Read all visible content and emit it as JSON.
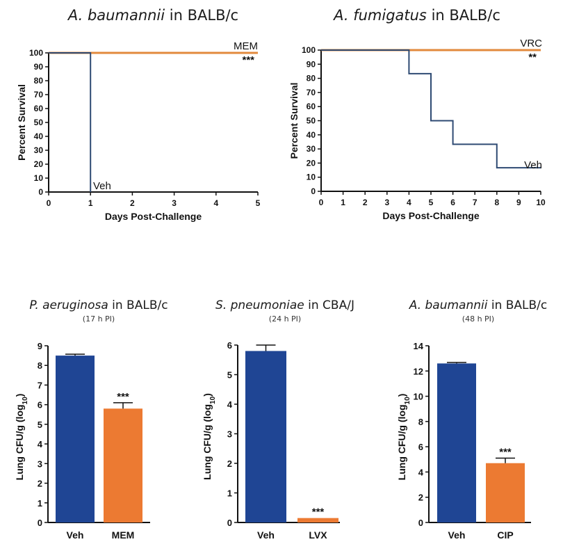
{
  "colors": {
    "veh_line": "#2e4a73",
    "drug_line": "#e28a3c",
    "veh_bar": "#1f4594",
    "drug_bar": "#ec7a32",
    "axis": "#111111"
  },
  "chart_data": [
    {
      "id": "survival_abaumannii",
      "type": "line",
      "title_italic": "A. baumannii",
      "title_rest": " in BALB/c",
      "xlabel": "Days Post-Challenge",
      "ylabel": "Percent Survival",
      "xlim": [
        0,
        5
      ],
      "ylim": [
        0,
        100
      ],
      "xticks": [
        0,
        1,
        2,
        3,
        4,
        5
      ],
      "yticks": [
        0,
        10,
        20,
        30,
        40,
        50,
        60,
        70,
        80,
        90,
        100
      ],
      "series": [
        {
          "name": "MEM",
          "x": [
            0,
            5
          ],
          "y": [
            100,
            100
          ],
          "annotation": "***"
        },
        {
          "name": "Veh",
          "x": [
            0,
            1,
            1
          ],
          "y": [
            100,
            100,
            0
          ]
        }
      ]
    },
    {
      "id": "survival_afumigatus",
      "type": "line",
      "title_italic": "A. fumigatus",
      "title_rest": " in BALB/c",
      "xlabel": "Days Post-Challenge",
      "ylabel": "Percent Survival",
      "xlim": [
        0,
        10
      ],
      "ylim": [
        0,
        100
      ],
      "xticks": [
        0,
        1,
        2,
        3,
        4,
        5,
        6,
        7,
        8,
        9,
        10
      ],
      "yticks": [
        0,
        10,
        20,
        30,
        40,
        50,
        60,
        70,
        80,
        90,
        100
      ],
      "series": [
        {
          "name": "VRC",
          "x": [
            0,
            10
          ],
          "y": [
            100,
            100
          ],
          "annotation": "**"
        },
        {
          "name": "Veh",
          "x": [
            0,
            4,
            4,
            5,
            5,
            6,
            6,
            8,
            8,
            10
          ],
          "y": [
            100,
            100,
            83.3,
            83.3,
            50,
            50,
            33.3,
            33.3,
            16.7,
            16.7
          ]
        }
      ]
    },
    {
      "id": "cfu_paeruginosa",
      "type": "bar",
      "title_italic": "P. aeruginosa",
      "title_rest": " in BALB/c",
      "subtitle": "(17 h PI)",
      "ylabel": "Lung CFU/g (log10)",
      "ylim": [
        0,
        9
      ],
      "yticks": [
        0,
        1,
        2,
        3,
        4,
        5,
        6,
        7,
        8,
        9
      ],
      "categories": [
        "Veh",
        "MEM"
      ],
      "values": [
        8.5,
        5.8
      ],
      "errors": [
        0.07,
        0.3
      ],
      "annotations": [
        "",
        "***"
      ]
    },
    {
      "id": "cfu_spneumoniae",
      "type": "bar",
      "title_italic": "S. pneumoniae",
      "title_rest": " in CBA/J",
      "subtitle": "(24 h PI)",
      "ylabel": "Lung CFU/g (log10)",
      "ylim": [
        0,
        6
      ],
      "yticks": [
        0,
        1,
        2,
        3,
        4,
        5,
        6
      ],
      "categories": [
        "Veh",
        "LVX"
      ],
      "values": [
        5.8,
        0.15
      ],
      "errors": [
        0.2,
        0
      ],
      "annotations": [
        "",
        "***"
      ]
    },
    {
      "id": "cfu_abaumannii",
      "type": "bar",
      "title_italic": "A. baumannii",
      "title_rest": " in BALB/c",
      "subtitle": "(48 h PI)",
      "ylabel": "Lung CFU/g (log10)",
      "ylim": [
        0,
        14
      ],
      "yticks": [
        0,
        2,
        4,
        6,
        8,
        10,
        12,
        14
      ],
      "categories": [
        "Veh",
        "CIP"
      ],
      "values": [
        12.6,
        4.7
      ],
      "errors": [
        0.08,
        0.4
      ],
      "annotations": [
        "",
        "***"
      ]
    }
  ]
}
